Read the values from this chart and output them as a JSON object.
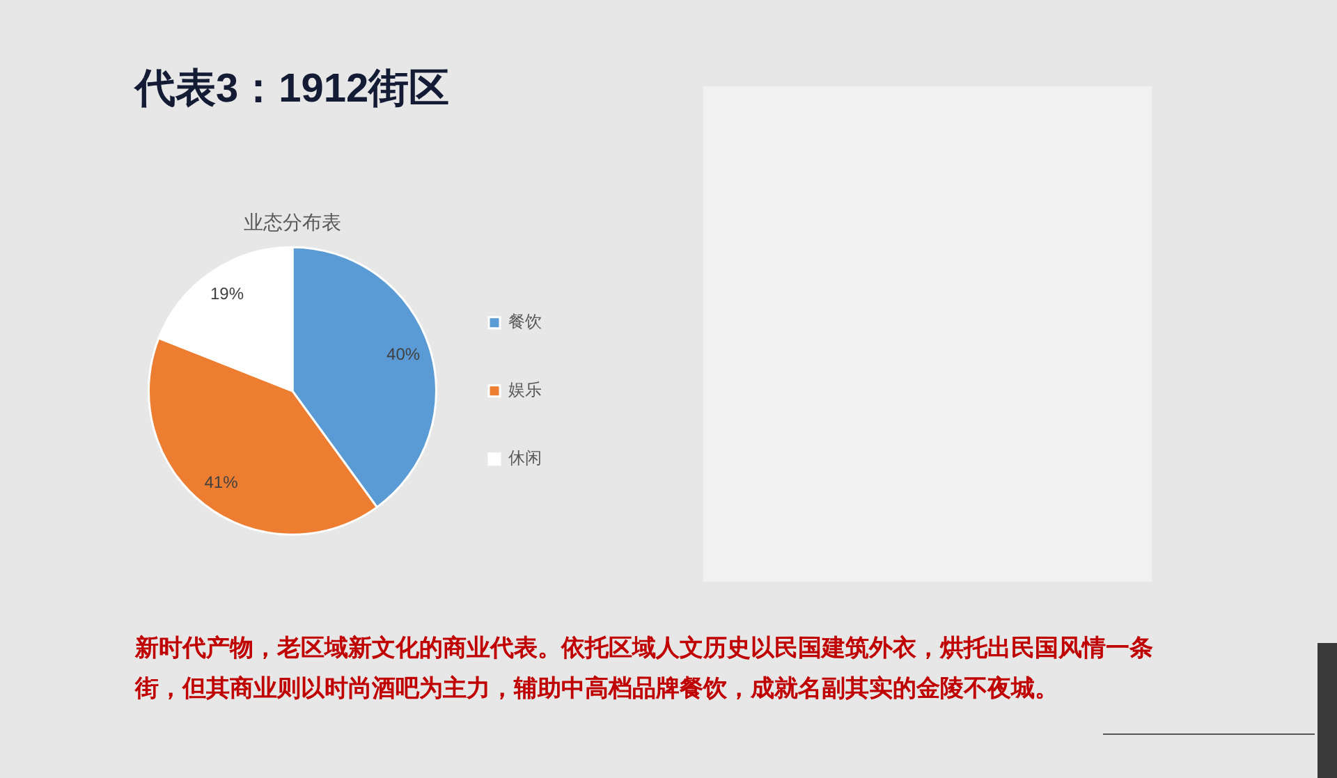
{
  "chart_data": {
    "type": "pie",
    "title": "代表3：1912街区",
    "subtitle": "业态分布表",
    "categories": [
      "餐饮",
      "娱乐",
      "休闲"
    ],
    "values": [
      40,
      41,
      19
    ],
    "colors": [
      "#5b9bd5",
      "#ed7d31",
      "#ffffff"
    ],
    "value_labels": [
      "40%",
      "41%",
      "19%"
    ],
    "legend": "right",
    "annotations": [
      "新时代产物，老区域新文化的商业代表。依托区域人文历史以民国建筑外衣，烘托出民国风情一条街，但其商业则以时尚酒吧为主力，辅助中高档品牌餐饮，成就名副其实的金陵不夜城。"
    ]
  }
}
